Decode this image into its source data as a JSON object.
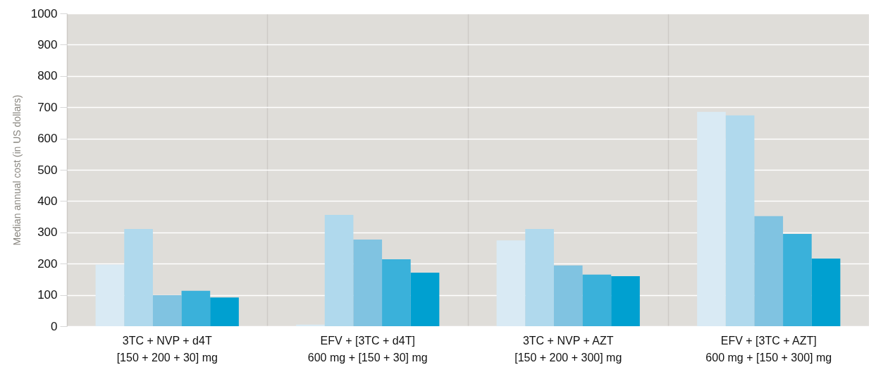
{
  "chart_data": {
    "type": "bar",
    "ylabel": "Median annual cost (in US dollars)",
    "categories": [
      "3TC + NVP + d4T\n[150 + 200 + 30] mg",
      "EFV + [3TC + d4T]\n600 mg + [150 + 30] mg",
      "3TC + NVP + AZT\n[150 + 200 + 300] mg",
      "EFV + [3TC + AZT]\n600 mg + [150 + 300] mg"
    ],
    "series": [
      {
        "color": "#d9eaf4",
        "values": [
          197,
          5,
          274,
          685
        ]
      },
      {
        "color": "#b0d9ed",
        "values": [
          311,
          356,
          311,
          674
        ]
      },
      {
        "color": "#80c3e1",
        "values": [
          99,
          277,
          194,
          352
        ]
      },
      {
        "color": "#3ab1da",
        "values": [
          113,
          214,
          165,
          295
        ]
      },
      {
        "color": "#00a0d0",
        "values": [
          92,
          171,
          160,
          216
        ]
      }
    ],
    "ylim": [
      0,
      1000
    ],
    "yticks": [
      0,
      100,
      200,
      300,
      400,
      500,
      600,
      700,
      800,
      900,
      1000
    ],
    "grid": true
  }
}
